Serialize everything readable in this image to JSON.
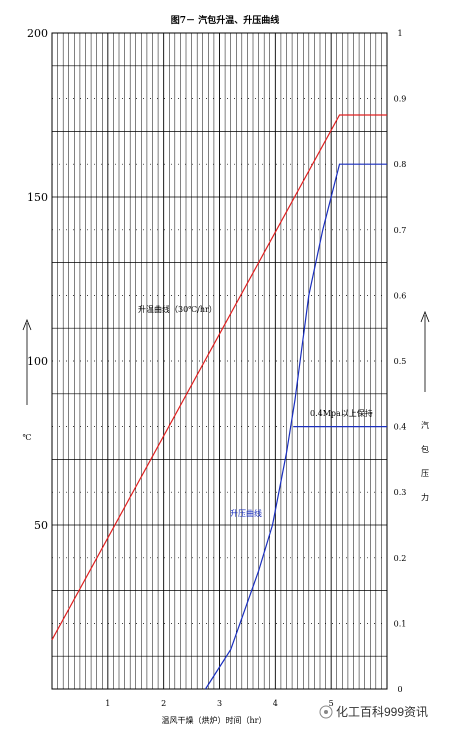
{
  "chart_data": {
    "type": "line",
    "title": "图7－ 汽包升温、升压曲线",
    "xlabel": "温风干燥（烘炉）时间（hr）",
    "ylabel_left": "℃",
    "ylabel_right": "汽包压力",
    "x_ticks": [
      "1",
      "2",
      "3",
      "4",
      "5"
    ],
    "xlim": [
      0,
      6
    ],
    "ylim_left": [
      0,
      200
    ],
    "ylim_right": [
      0,
      1
    ],
    "y_ticks_left": [
      "200",
      "150",
      "100",
      "50"
    ],
    "y_ticks_right": [
      "1",
      "0.9",
      "0.8",
      "0.7",
      "0.6",
      "0.5",
      "0.4",
      "0.3",
      "0.2",
      "0.1",
      "0"
    ],
    "grid": true,
    "series": [
      {
        "name": "升温曲线（30℃/hr）",
        "axis": "left",
        "color": "#e02020",
        "points": [
          [
            0,
            15
          ],
          [
            5.15,
            175
          ],
          [
            6,
            175
          ]
        ]
      },
      {
        "name": "升压曲线",
        "axis": "right",
        "color": "#1a2fbf",
        "points": [
          [
            2.75,
            0
          ],
          [
            3.2,
            0.06
          ],
          [
            3.7,
            0.18
          ],
          [
            3.95,
            0.25
          ],
          [
            4.2,
            0.36
          ],
          [
            4.35,
            0.44
          ],
          [
            4.6,
            0.6
          ],
          [
            4.85,
            0.7
          ],
          [
            5.15,
            0.8
          ],
          [
            6,
            0.8
          ]
        ]
      },
      {
        "name": "0.4Mpa以上保持",
        "axis": "right",
        "color": "#1a2fbf",
        "points": [
          [
            4.32,
            0.4
          ],
          [
            6,
            0.4
          ]
        ]
      }
    ],
    "annotations": {
      "temp_curve": "升温曲线（30℃/hr）",
      "pressure_curve": "升压曲线",
      "hold_note": "0.4Mpa以上保持"
    }
  },
  "watermark": "化工百科999资讯"
}
